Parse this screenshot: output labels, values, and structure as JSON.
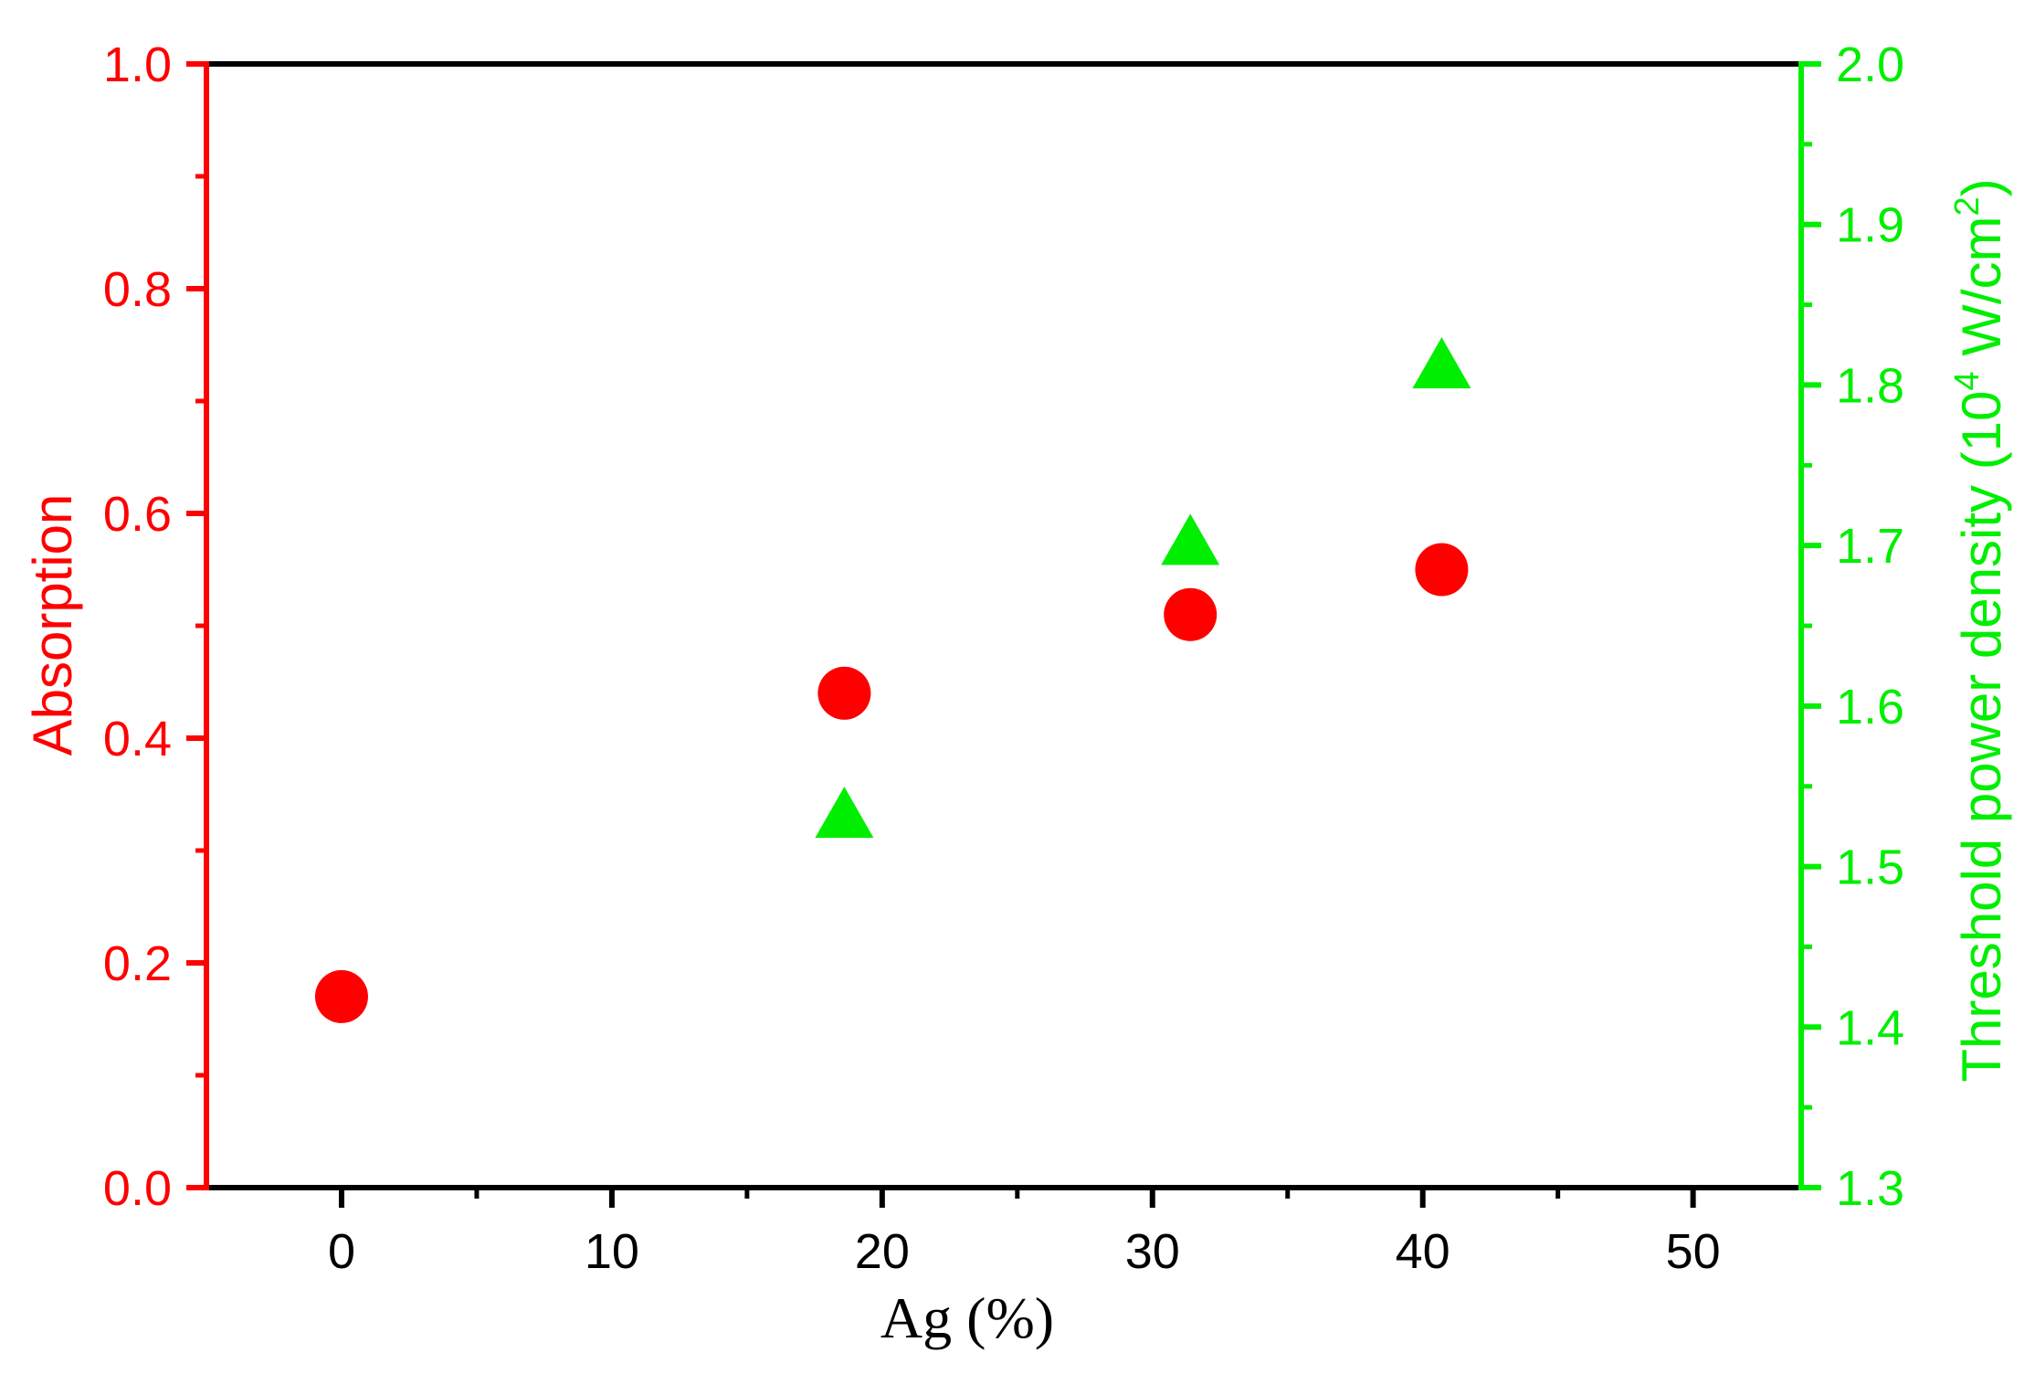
{
  "chart_data": {
    "type": "scatter",
    "x_axis": {
      "label": "Ag (%)",
      "range": [
        -5,
        54
      ],
      "ticks": [
        0,
        10,
        20,
        30,
        40,
        50
      ],
      "tick_labels": [
        "0",
        "10",
        "20",
        "30",
        "40",
        "50"
      ]
    },
    "y_left_axis": {
      "label": "Absorption",
      "range": [
        0.0,
        1.0
      ],
      "ticks": [
        0.0,
        0.2,
        0.4,
        0.6,
        0.8,
        1.0
      ],
      "tick_labels": [
        "0.0",
        "0.2",
        "0.4",
        "0.6",
        "0.8",
        "1.0"
      ],
      "color": "#ff0000"
    },
    "y_right_axis": {
      "label_prefix": "Threshold power density (10",
      "label_exp1": "4",
      "label_mid": " W/cm",
      "label_exp2": "2",
      "label_suffix": ")",
      "range": [
        1.3,
        2.0
      ],
      "ticks": [
        1.3,
        1.4,
        1.5,
        1.6,
        1.7,
        1.8,
        1.9,
        2.0
      ],
      "tick_labels": [
        "1.3",
        "1.4",
        "1.5",
        "1.6",
        "1.7",
        "1.8",
        "1.9",
        "2.0"
      ],
      "color": "#00ee00"
    },
    "series": [
      {
        "axis": "left",
        "marker": "circle",
        "color": "#ff0000",
        "points": [
          {
            "x": 0,
            "y": 0.17
          },
          {
            "x": 18.6,
            "y": 0.44
          },
          {
            "x": 31.4,
            "y": 0.51
          },
          {
            "x": 40.7,
            "y": 0.55
          }
        ]
      },
      {
        "axis": "right",
        "marker": "triangle",
        "color": "#00ee00",
        "points": [
          {
            "x": 18.6,
            "y": 1.53
          },
          {
            "x": 31.4,
            "y": 1.7
          },
          {
            "x": 40.7,
            "y": 1.81
          }
        ]
      }
    ],
    "grid": false,
    "legend": "none"
  }
}
